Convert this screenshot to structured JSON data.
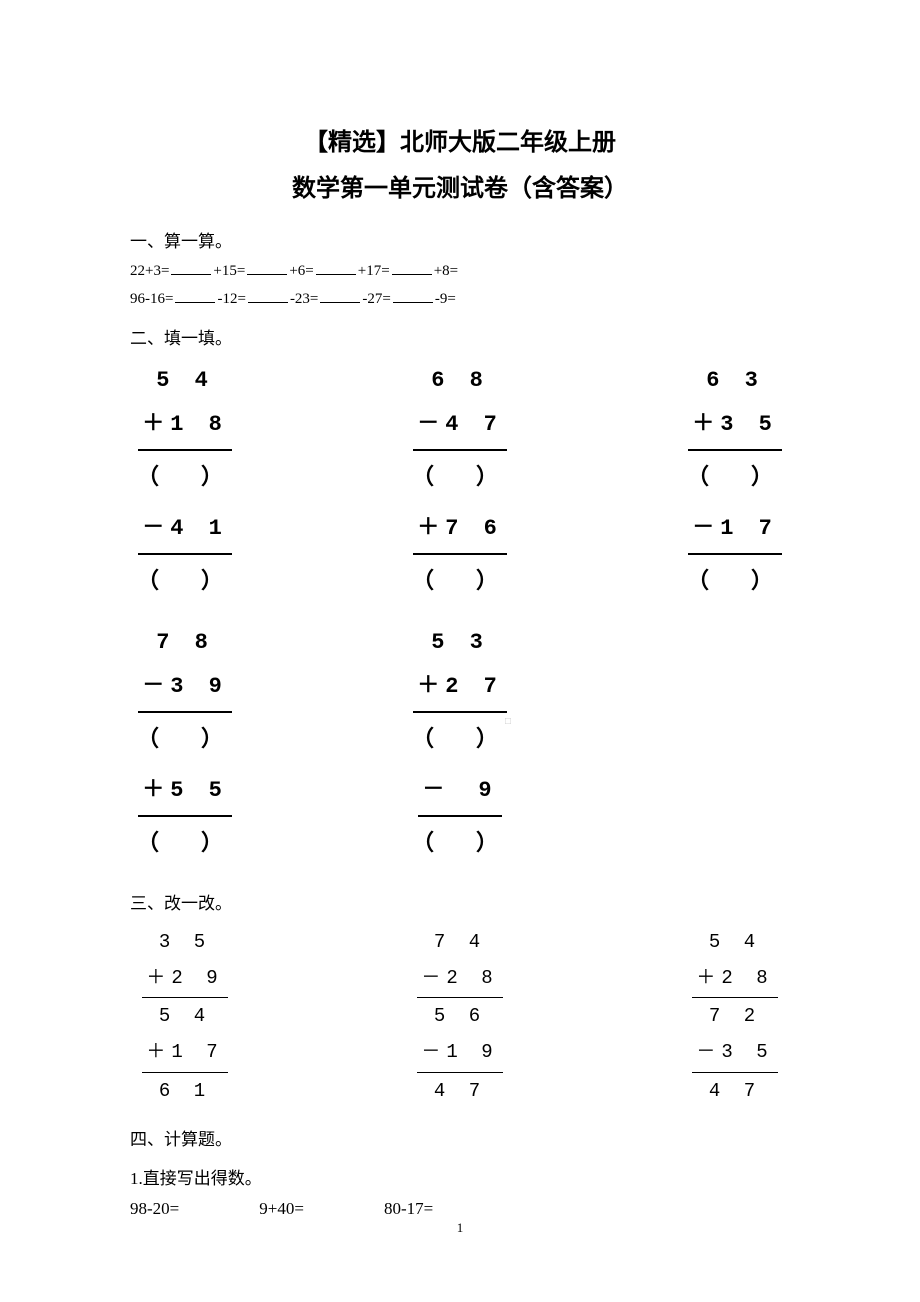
{
  "title_line1": "【精选】北师大版二年级上册",
  "title_line2": "数学第一单元测试卷（含答案）",
  "sec1_heading": "一、算一算。",
  "chain1_prefix": "22+3=",
  "chain1_p2": "+15=",
  "chain1_p3": "+6=",
  "chain1_p4": "+17=",
  "chain1_p5": "+8=",
  "chain2_prefix": "96-16=",
  "chain2_p2": "-12=",
  "chain2_p3": "-23=",
  "chain2_p4": "-27=",
  "chain2_p5": "-9=",
  "sec2_heading": "二、填一填。",
  "q2": {
    "c1": {
      "a": "5 4",
      "op1": "＋1 8",
      "op2": "－4 1"
    },
    "c2": {
      "a": "6 8",
      "op1": "－4 7",
      "op2": "＋7 6"
    },
    "c3": {
      "a": "6 3",
      "op1": "＋3 5",
      "op2": "－1 7"
    },
    "c4": {
      "a": "7 8",
      "op1": "－3 9",
      "op2": "＋5 5"
    },
    "c5": {
      "a": "5 3",
      "op1": "＋2 7",
      "op2": "－　9"
    }
  },
  "paren": "（　）",
  "sec3_heading": "三、改一改。",
  "q3": {
    "c1": {
      "a": "3 5",
      "op1": "＋2 9",
      "r1": "5 4",
      "op2": "＋1 7",
      "r2": "6 1"
    },
    "c2": {
      "a": "7 4",
      "op1": "－2 8",
      "r1": "5 6",
      "op2": "－1 9",
      "r2": "4 7"
    },
    "c3": {
      "a": "5 4",
      "op1": "＋2 8",
      "r1": "7 2",
      "op2": "－3 5",
      "r2": "4 7"
    }
  },
  "sec4_heading": "四、计算题。",
  "sec4_sub": "1.直接写出得数。",
  "eq1": "98-20=",
  "eq2": "9+40=",
  "eq3": "80-17=",
  "page_number": "1",
  "faint": "□"
}
